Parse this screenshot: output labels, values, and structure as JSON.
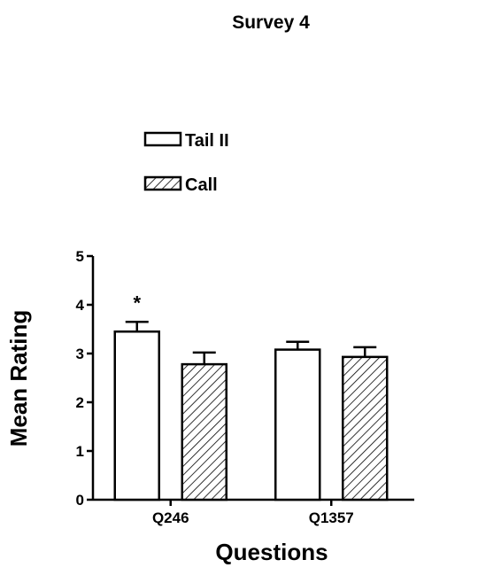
{
  "chart_data": {
    "type": "bar",
    "title": "Survey 4",
    "xlabel": "Questions",
    "ylabel": "Mean Rating",
    "categories": [
      "Q246",
      "Q1357"
    ],
    "ylim": [
      0,
      5
    ],
    "yticks": [
      0,
      1,
      2,
      3,
      4,
      5
    ],
    "grid": false,
    "legend_position": "top-left",
    "series": [
      {
        "name": "Tail II",
        "fill": "open",
        "values": [
          3.45,
          3.08
        ],
        "errors": [
          0.2,
          0.16
        ]
      },
      {
        "name": "Call",
        "fill": "hatched",
        "values": [
          2.78,
          2.93
        ],
        "errors": [
          0.24,
          0.2
        ]
      }
    ],
    "annotations": [
      {
        "text": "*",
        "category": "Q246",
        "series": "Tail II"
      }
    ]
  }
}
